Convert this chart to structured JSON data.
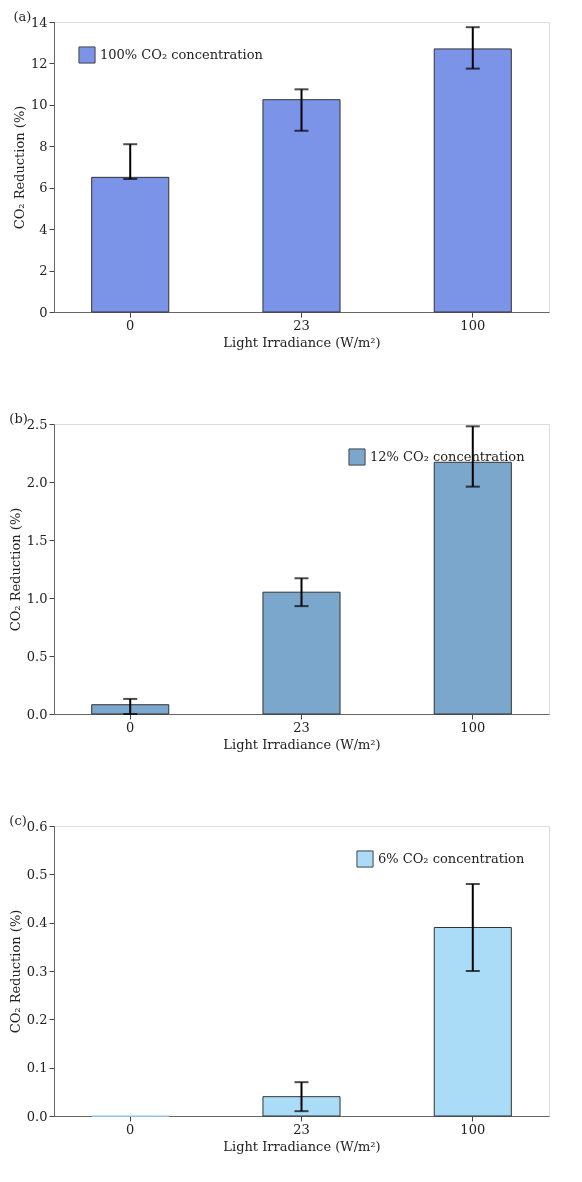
{
  "chart_data": [
    {
      "type": "bar",
      "title": "(a)",
      "xlabel": "Light Irradiance (W/m²)",
      "ylabel": "CO₂ Reduction (%)",
      "categories": [
        "0",
        "23",
        "100"
      ],
      "series": [
        {
          "name": "100% CO₂ concentration",
          "color": "#7b94e8",
          "values": [
            6.5,
            10.25,
            12.7
          ],
          "errors": [
            [
              6.42,
              8.1
            ],
            [
              8.75,
              10.75
            ],
            [
              11.75,
              13.75
            ]
          ]
        }
      ],
      "ylim": [
        0,
        14
      ],
      "yticks": [
        0,
        2,
        4,
        6,
        8,
        10,
        12,
        14
      ],
      "grid": false,
      "legend": "top left"
    },
    {
      "type": "bar",
      "title": "(b)",
      "xlabel": "Light Irradiance (W/m²)",
      "ylabel": "CO₂ Reduction (%)",
      "categories": [
        "0",
        "23",
        "100"
      ],
      "series": [
        {
          "name": "12% CO₂ concentration",
          "color": "#7ba7cc",
          "values": [
            0.08,
            1.05,
            2.17
          ],
          "errors": [
            [
              0.0,
              0.13
            ],
            [
              0.93,
              1.17
            ],
            [
              1.96,
              2.48
            ]
          ]
        }
      ],
      "ylim": [
        0,
        2.5
      ],
      "yticks": [
        {
          "value": 0,
          "label": "0.0"
        },
        0.5,
        {
          "value": 1,
          "label": "1.0"
        },
        1.5,
        {
          "value": 2,
          "label": "2.0"
        },
        2.5
      ],
      "grid": false,
      "legend": "top right"
    },
    {
      "type": "bar",
      "title": "(c)",
      "xlabel": "Light Irradiance (W/m²)",
      "ylabel": "CO₂ Reduction (%)",
      "categories": [
        "0",
        "23",
        "100"
      ],
      "series": [
        {
          "name": "6% CO₂ concentration",
          "color": "#aadcf8",
          "values": [
            0.0,
            0.04,
            0.39
          ],
          "errors": [
            null,
            [
              0.01,
              0.07
            ],
            [
              0.3,
              0.48
            ]
          ]
        }
      ],
      "ylim": [
        0,
        0.6
      ],
      "yticks": [
        {
          "value": 0,
          "label": "0.0"
        },
        0.1,
        0.2,
        0.3,
        0.4,
        0.5,
        0.6
      ],
      "grid": false,
      "legend": "top right"
    }
  ]
}
